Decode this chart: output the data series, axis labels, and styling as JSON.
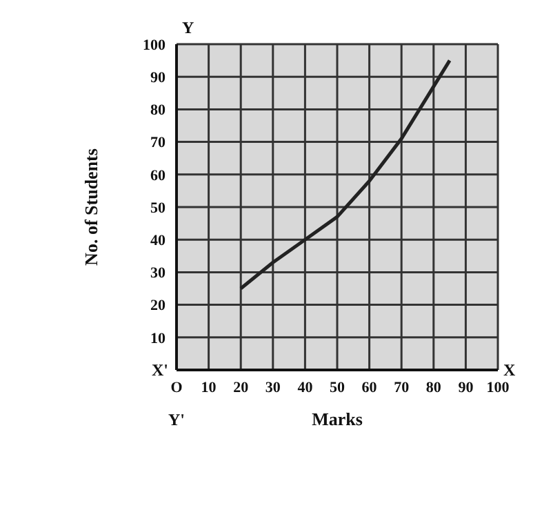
{
  "chart_data": {
    "type": "line",
    "xlabel": "Marks",
    "ylabel": "No. of Students",
    "x": [
      20,
      30,
      40,
      50,
      60,
      70,
      85
    ],
    "series": [
      {
        "color": "#222222",
        "values": [
          25,
          33,
          40,
          47,
          58,
          71,
          95
        ]
      }
    ],
    "xlim": [
      0,
      100
    ],
    "ylim": [
      0,
      100
    ],
    "xticks": [
      {
        "value": 0,
        "label": "O"
      },
      10,
      20,
      30,
      40,
      50,
      60,
      70,
      80,
      90,
      100
    ],
    "yticks": [
      {
        "value": 0,
        "label": null
      },
      10,
      20,
      30,
      40,
      50,
      60,
      70,
      80,
      90,
      100
    ],
    "grid": true,
    "marker": "none",
    "line_style": "solid",
    "annotations": [
      "X'",
      "X",
      "Y",
      "Y'"
    ]
  }
}
